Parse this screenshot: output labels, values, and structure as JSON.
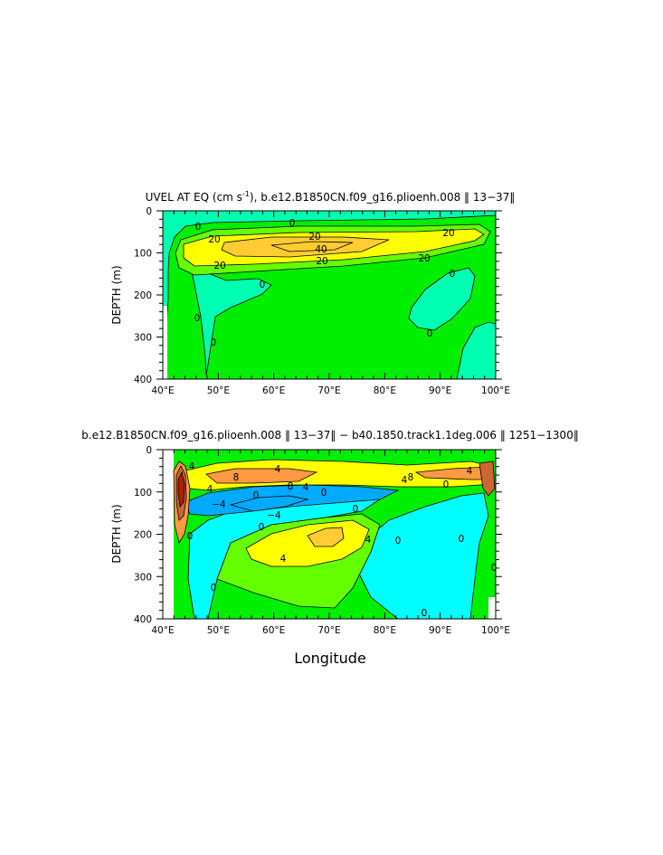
{
  "chart_data": [
    {
      "type": "heatmap",
      "subtype": "contour",
      "title": "UVEL AT EQ (cm s",
      "title_sup": "-1",
      "title_rest": "), b.e12.B1850CN.f09_g16.plioenh.008 ‖ 13−37‖",
      "ylabel": "DEPTH (m)",
      "xlabel": "",
      "xlim": [
        40,
        100
      ],
      "ylim": [
        0,
        400
      ],
      "y_inverted": true,
      "xticks": [
        "40°E",
        "50°E",
        "60°E",
        "70°E",
        "80°E",
        "90°E",
        "100°E"
      ],
      "yticks": [
        "0",
        "100",
        "200",
        "300",
        "400"
      ],
      "contour_labels": [
        "0",
        "0",
        "0",
        "0",
        "0",
        "0",
        "0",
        "20",
        "20",
        "20",
        "20",
        "20",
        "40",
        "0"
      ],
      "colors": [
        "#00ee00",
        "#00ffb0",
        "#66ff00",
        "#ffff00",
        "#ffcc33"
      ],
      "features": [
        {
          "kind": "max",
          "x": 70,
          "y": 85,
          "value": 40
        },
        {
          "kind": "undercurrent_core",
          "x_range": [
            43,
            97
          ],
          "y_range": [
            40,
            140
          ],
          "value": 20
        }
      ]
    },
    {
      "type": "heatmap",
      "subtype": "contour",
      "title": "b.e12.B1850CN.f09_g16.plioenh.008 ‖ 13−37‖ − b40.1850.track1.1deg.006 ‖ 1251−1300‖",
      "ylabel": "DEPTH (m)",
      "xlabel": "Longitude",
      "xlim": [
        40,
        100
      ],
      "ylim": [
        0,
        400
      ],
      "y_inverted": true,
      "xticks": [
        "40°E",
        "50°E",
        "60°E",
        "70°E",
        "80°E",
        "90°E",
        "100°E"
      ],
      "yticks": [
        "0",
        "100",
        "200",
        "300",
        "400"
      ],
      "contour_labels": [
        "4",
        "8",
        "4",
        "4",
        "8",
        "4",
        "4",
        "8",
        "0",
        "4",
        "0",
        "−4",
        "0",
        "−4",
        "0",
        "4",
        "4",
        "0",
        "0",
        "0",
        "0",
        "0",
        "0"
      ],
      "colors": [
        "#007000",
        "#00aaff",
        "#00ffff",
        "#00ee00",
        "#66ff00",
        "#ffff00",
        "#ffcc33",
        "#ff9944",
        "#cc6633",
        "#aa2200"
      ],
      "features": [
        {
          "kind": "max",
          "x": 43.5,
          "y": 90,
          "value": 28
        },
        {
          "kind": "min",
          "x": 57,
          "y": 135,
          "value": -8
        },
        {
          "kind": "max",
          "x": 71,
          "y": 210,
          "value": 5
        }
      ]
    }
  ]
}
